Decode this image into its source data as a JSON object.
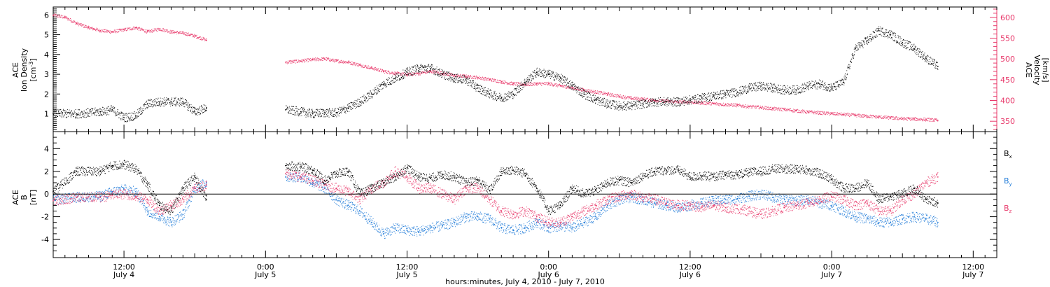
{
  "colors": {
    "black": "#000000",
    "magenta": "#e8386a",
    "blue": "#1e7ad8"
  },
  "x_axis": {
    "label": "hours:minutes, July  4, 2010 - July  7, 2010",
    "ticks": [
      {
        "hour": 12,
        "time": "12:00",
        "date": "July 4"
      },
      {
        "hour": 24,
        "time": "0:00",
        "date": "July 5"
      },
      {
        "hour": 36,
        "time": "12:00",
        "date": "July 5"
      },
      {
        "hour": 48,
        "time": "0:00",
        "date": "July 6"
      },
      {
        "hour": 60,
        "time": "12:00",
        "date": "July 6"
      },
      {
        "hour": 72,
        "time": "0:00",
        "date": "July 7"
      },
      {
        "hour": 84,
        "time": "12:00",
        "date": "July 7"
      }
    ]
  },
  "chart_data": [
    {
      "type": "scatter",
      "panel": "top",
      "ylabel_left": [
        "ACE",
        "Ion Density",
        "[cm^-3]"
      ],
      "ylabel_right": [
        "ACE",
        "Velocity",
        "[km/s]"
      ],
      "xlim_hours": [
        6.0,
        86.0
      ],
      "ylim_left": [
        0.1,
        6.4
      ],
      "yticks_left": [
        1,
        2,
        3,
        4,
        5,
        6
      ],
      "ylim_right": [
        325,
        625
      ],
      "yticks_right": [
        350,
        400,
        450,
        500,
        550,
        600
      ],
      "data_gap_hours": [
        19.0,
        25.7
      ],
      "series": [
        {
          "axis": "left",
          "color": "black",
          "x_hours": [
            6,
            8,
            10,
            11,
            12,
            13,
            14,
            15,
            16,
            17,
            18,
            19,
            25.7,
            27,
            28,
            29,
            30,
            31,
            32,
            33,
            34,
            35,
            36,
            37,
            38,
            39,
            40,
            41,
            42,
            43,
            44,
            45,
            46,
            47,
            48,
            49,
            50,
            51,
            52,
            53,
            54,
            55,
            56,
            57,
            58,
            59,
            60,
            61,
            62,
            63,
            64,
            65,
            66,
            67,
            68,
            69,
            70,
            71,
            72,
            73,
            74,
            75,
            76,
            77,
            78,
            79,
            80,
            81
          ],
          "values": [
            1.0,
            1.0,
            1.1,
            1.2,
            0.8,
            0.9,
            1.5,
            1.6,
            1.6,
            1.6,
            1.1,
            1.3,
            1.2,
            1.1,
            1.0,
            1.05,
            1.05,
            1.3,
            1.6,
            2.0,
            2.5,
            2.8,
            3.1,
            3.3,
            3.3,
            3.0,
            2.8,
            2.7,
            2.3,
            2.0,
            1.8,
            2.0,
            2.6,
            3.1,
            3.0,
            2.8,
            2.4,
            2.0,
            1.7,
            1.5,
            1.4,
            1.4,
            1.5,
            1.6,
            1.6,
            1.6,
            1.7,
            1.8,
            1.9,
            2.0,
            2.1,
            2.3,
            2.4,
            2.3,
            2.2,
            2.2,
            2.4,
            2.5,
            2.3,
            2.6,
            4.3,
            4.7,
            5.2,
            5.0,
            4.6,
            4.3,
            3.8,
            3.4
          ]
        },
        {
          "axis": "right",
          "color": "magenta",
          "x_hours": [
            6,
            7,
            8,
            9,
            10,
            11,
            12,
            13,
            14,
            15,
            16,
            17,
            18,
            19,
            25.7,
            27,
            28,
            29,
            30,
            31,
            32,
            33,
            34,
            35,
            36,
            37,
            38,
            39,
            40,
            41,
            42,
            43,
            44,
            45,
            46,
            47,
            48,
            49,
            50,
            51,
            52,
            53,
            54,
            55,
            56,
            57,
            58,
            59,
            60,
            61,
            62,
            63,
            64,
            65,
            66,
            67,
            68,
            69,
            70,
            71,
            72,
            73,
            74,
            75,
            76,
            77,
            78,
            79,
            80,
            81
          ],
          "values": [
            605,
            600,
            585,
            575,
            568,
            565,
            570,
            575,
            565,
            572,
            565,
            562,
            555,
            545,
            492,
            495,
            498,
            500,
            495,
            492,
            485,
            478,
            470,
            465,
            462,
            465,
            470,
            465,
            460,
            458,
            455,
            450,
            445,
            440,
            438,
            440,
            440,
            435,
            430,
            425,
            420,
            415,
            410,
            405,
            403,
            400,
            398,
            396,
            396,
            394,
            392,
            390,
            388,
            385,
            383,
            380,
            378,
            375,
            372,
            370,
            368,
            366,
            364,
            362,
            360,
            358,
            356,
            355,
            354,
            352
          ]
        }
      ]
    },
    {
      "type": "scatter",
      "panel": "bottom",
      "ylabel_left": [
        "ACE",
        "B",
        "[nT]"
      ],
      "xlim_hours": [
        6.0,
        86.0
      ],
      "ylim_left": [
        -5.6,
        5.5
      ],
      "yticks_left": [
        -4,
        -2,
        0,
        2,
        4
      ],
      "zero_line": true,
      "data_gap_hours": [
        19.0,
        25.7
      ],
      "series": [
        {
          "name": "Bx",
          "color": "black",
          "x_hours": [
            6,
            8,
            10,
            11,
            12,
            13,
            14,
            15,
            16,
            17,
            18,
            19,
            25.7,
            27,
            28,
            29,
            30,
            31,
            32,
            33,
            34,
            35,
            36,
            37,
            38,
            39,
            40,
            41,
            42,
            43,
            44,
            45,
            46,
            47,
            48,
            49,
            50,
            51,
            52,
            53,
            54,
            55,
            56,
            57,
            58,
            59,
            60,
            61,
            62,
            63,
            64,
            65,
            66,
            67,
            68,
            69,
            70,
            71,
            72,
            73,
            74,
            75,
            76,
            77,
            78,
            79,
            80,
            81
          ],
          "values": [
            0.2,
            2.0,
            2.0,
            2.5,
            2.6,
            2.2,
            0.8,
            -1.0,
            -1.5,
            0.5,
            1.5,
            -0.5,
            2.5,
            2.4,
            2.1,
            1.2,
            1.8,
            2.0,
            0.0,
            0.5,
            1.0,
            1.5,
            2.3,
            1.5,
            1.4,
            1.7,
            1.5,
            1.0,
            1.2,
            0.3,
            2.0,
            2.1,
            1.8,
            0.5,
            -1.5,
            -1.0,
            0.5,
            0.0,
            0.3,
            1.0,
            1.2,
            1.0,
            1.6,
            2.0,
            2.1,
            2.1,
            1.5,
            1.6,
            1.5,
            1.7,
            1.7,
            1.9,
            2.0,
            2.2,
            2.2,
            2.2,
            2.1,
            1.8,
            1.3,
            0.5,
            0.5,
            1.0,
            -0.5,
            -0.2,
            0.0,
            0.5,
            -0.5,
            -0.8
          ]
        },
        {
          "name": "By",
          "color": "blue",
          "x_hours": [
            6,
            8,
            10,
            11,
            12,
            13,
            14,
            15,
            16,
            17,
            18,
            19,
            25.7,
            27,
            28,
            29,
            30,
            31,
            32,
            33,
            34,
            35,
            36,
            37,
            38,
            39,
            40,
            41,
            42,
            43,
            44,
            45,
            46,
            47,
            48,
            49,
            50,
            51,
            52,
            53,
            54,
            55,
            56,
            57,
            58,
            59,
            60,
            61,
            62,
            63,
            64,
            65,
            66,
            67,
            68,
            69,
            70,
            71,
            72,
            73,
            74,
            75,
            76,
            77,
            78,
            79,
            80,
            81
          ],
          "values": [
            -0.5,
            -0.3,
            -0.2,
            0.2,
            0.4,
            0.2,
            -1.5,
            -2.0,
            -2.5,
            -1.8,
            0.5,
            1.0,
            1.5,
            1.5,
            1.0,
            0.5,
            -0.5,
            -1.0,
            -1.5,
            -2.5,
            -3.5,
            -3.0,
            -3.2,
            -3.3,
            -3.0,
            -2.8,
            -2.5,
            -2.0,
            -2.0,
            -2.2,
            -3.0,
            -3.2,
            -3.0,
            -2.5,
            -3.0,
            -2.8,
            -3.0,
            -2.5,
            -2.0,
            -1.0,
            -0.5,
            -0.3,
            -0.5,
            -0.8,
            -1.0,
            -1.2,
            -1.0,
            -0.8,
            -0.6,
            -0.5,
            -0.4,
            -0.2,
            0.0,
            -0.3,
            -0.5,
            -0.6,
            -0.5,
            -0.8,
            -1.0,
            -1.5,
            -2.0,
            -2.2,
            -2.5,
            -2.5,
            -2.2,
            -2.0,
            -2.2,
            -2.5
          ]
        },
        {
          "name": "Bz",
          "color": "magenta",
          "x_hours": [
            6,
            8,
            10,
            11,
            12,
            13,
            14,
            15,
            16,
            17,
            18,
            19,
            25.7,
            27,
            28,
            29,
            30,
            31,
            32,
            33,
            34,
            35,
            36,
            37,
            38,
            39,
            40,
            41,
            42,
            43,
            44,
            45,
            46,
            47,
            48,
            49,
            50,
            51,
            52,
            53,
            54,
            55,
            56,
            57,
            58,
            59,
            60,
            61,
            62,
            63,
            64,
            65,
            66,
            67,
            68,
            69,
            70,
            71,
            72,
            73,
            74,
            75,
            76,
            77,
            78,
            79,
            80,
            81
          ],
          "values": [
            -0.6,
            -0.3,
            -0.3,
            -0.1,
            0.0,
            -0.2,
            -0.5,
            -1.5,
            -1.0,
            -0.5,
            0.5,
            0.8,
            1.8,
            1.5,
            1.2,
            0.8,
            0.5,
            0.2,
            -0.5,
            0.5,
            1.0,
            2.0,
            1.5,
            0.5,
            0.5,
            0.0,
            -0.5,
            0.5,
            0.5,
            -0.5,
            -1.5,
            -1.8,
            -1.5,
            -2.0,
            -2.5,
            -2.5,
            -2.0,
            -1.5,
            -1.0,
            -0.5,
            -0.2,
            0.0,
            -0.3,
            -0.5,
            -0.8,
            -1.0,
            -1.0,
            -1.2,
            -1.0,
            -1.2,
            -1.3,
            -1.5,
            -1.8,
            -1.5,
            -1.2,
            -1.0,
            -0.8,
            -0.5,
            -0.2,
            -0.5,
            -1.0,
            -0.8,
            -1.5,
            -1.5,
            -0.5,
            0.0,
            1.0,
            1.5
          ]
        }
      ],
      "legend": [
        {
          "base": "B",
          "sub": "x",
          "color": "black"
        },
        {
          "base": "B",
          "sub": "y",
          "color": "blue"
        },
        {
          "base": "B",
          "sub": "z",
          "color": "magenta"
        }
      ]
    }
  ]
}
